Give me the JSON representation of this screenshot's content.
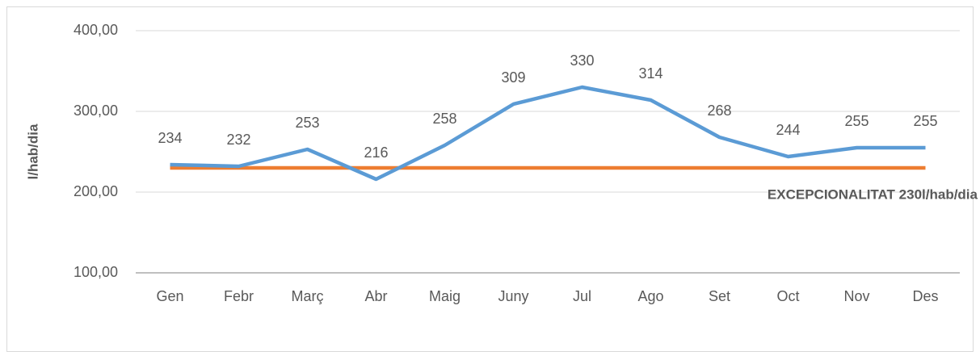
{
  "chart_data": {
    "type": "line",
    "y_label": "l/hab/dia",
    "categories": [
      "Gen",
      "Febr",
      "Març",
      "Abr",
      "Maig",
      "Juny",
      "Jul",
      "Ago",
      "Set",
      "Oct",
      "Nov",
      "Des"
    ],
    "series": [
      {
        "color": "#5b9bd5",
        "values": [
          234,
          232,
          253,
          216,
          258,
          309,
          330,
          314,
          268,
          244,
          255,
          255
        ]
      },
      {
        "name": "EXCEPCIONALITAT 230l/hab/dia",
        "color": "#ed7d31",
        "values": [
          230,
          230,
          230,
          230,
          230,
          230,
          230,
          230,
          230,
          230,
          230,
          230
        ]
      }
    ],
    "ylim": [
      100,
      400
    ],
    "yticks": [
      {
        "value": 100,
        "label": "100,00"
      },
      {
        "value": 200,
        "label": "200,00"
      },
      {
        "value": 300,
        "label": "300,00"
      },
      {
        "value": 400,
        "label": "400,00"
      }
    ],
    "grid": true
  }
}
